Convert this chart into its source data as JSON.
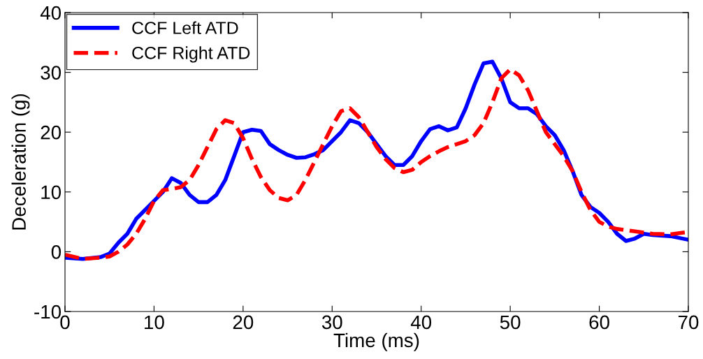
{
  "chart_data": {
    "type": "line",
    "xlabel": "Time (ms)",
    "ylabel": "Deceleration (g)",
    "xlim": [
      0,
      70
    ],
    "xticks": [
      0,
      10,
      20,
      30,
      40,
      50,
      60,
      70
    ],
    "ylim": [
      -10,
      40
    ],
    "yticks": [
      -10,
      0,
      10,
      20,
      30,
      40
    ],
    "grid": false,
    "legend": "top left",
    "series": [
      {
        "name": "CCF Left ATD",
        "color": "#0000ff",
        "line_style": "solid",
        "x": [
          0,
          2,
          4,
          5,
          6,
          7,
          8,
          9,
          10,
          11,
          12,
          13,
          14,
          15,
          16,
          17,
          18,
          19,
          20,
          21,
          22,
          23,
          24,
          25,
          26,
          27,
          28,
          29,
          30,
          31,
          32,
          33,
          34,
          35,
          36,
          37,
          38,
          39,
          40,
          41,
          42,
          43,
          44,
          45,
          46,
          47,
          48,
          49,
          50,
          51,
          52,
          53,
          54,
          55,
          56,
          57,
          58,
          59,
          60,
          61,
          62,
          63,
          64,
          65,
          66,
          68,
          70
        ],
        "values": [
          -1,
          -1.2,
          -0.9,
          -0.3,
          1.5,
          3,
          5.5,
          7,
          8.5,
          10,
          12.3,
          11.5,
          9.5,
          8.3,
          8.3,
          9.5,
          12,
          16,
          20,
          20.4,
          20.2,
          18,
          17,
          16.2,
          15.7,
          15.8,
          16.3,
          17,
          18.5,
          20,
          22,
          21.5,
          20,
          18,
          16,
          14.5,
          14.5,
          16,
          18.5,
          20.5,
          21,
          20.3,
          20.8,
          24,
          28,
          31.5,
          31.8,
          29,
          25,
          24,
          24,
          23,
          21,
          19.5,
          17,
          13.5,
          9.5,
          7.5,
          6.5,
          5,
          3,
          1.8,
          2.2,
          3,
          2.8,
          2.6,
          2
        ]
      },
      {
        "name": "CCF Right ATD",
        "color": "#ff0000",
        "line_style": "dashed",
        "x": [
          0,
          2,
          4,
          5,
          6,
          7,
          8,
          9,
          10,
          11,
          12,
          13,
          14,
          15,
          16,
          17,
          18,
          19,
          20,
          21,
          22,
          23,
          24,
          25,
          26,
          27,
          28,
          29,
          30,
          31,
          32,
          33,
          34,
          35,
          36,
          37,
          38,
          39,
          40,
          41,
          42,
          43,
          44,
          45,
          46,
          47,
          48,
          49,
          50,
          51,
          52,
          53,
          54,
          55,
          56,
          57,
          58,
          59,
          60,
          61,
          62,
          64,
          66,
          68,
          70
        ],
        "values": [
          -0.5,
          -1.2,
          -1,
          -0.8,
          0,
          1.2,
          3,
          5.5,
          8.5,
          10.3,
          10.5,
          10.8,
          12,
          14.5,
          17.5,
          20.5,
          22,
          21.5,
          19,
          15.5,
          12.5,
          10.3,
          9,
          8.6,
          9.5,
          12,
          15,
          18,
          21,
          23.5,
          24,
          22.5,
          20,
          17.5,
          15.5,
          14,
          13.3,
          13.7,
          15,
          16,
          16.8,
          17.5,
          18,
          18.5,
          19.5,
          21.5,
          25,
          29,
          30.5,
          29.5,
          27,
          23.5,
          20,
          18,
          16,
          13.5,
          10,
          7,
          5,
          4.2,
          3.8,
          3.4,
          3,
          2.9,
          3.3
        ]
      }
    ]
  }
}
